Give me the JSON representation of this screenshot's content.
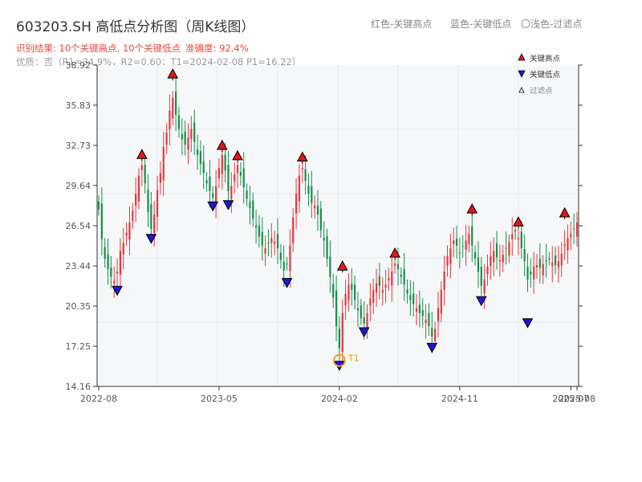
{
  "header": {
    "title": "603203.SH 高低点分析图（周K线图）",
    "legend_red": "红色-关键高点",
    "legend_blue": "蓝色-关键低点",
    "legend_light": "〇浅色-过滤点",
    "result_text": "识别结果: 10个关键高点, 10个关键低点",
    "accuracy_text": "准确度: 92.4%",
    "quality_text": "优质：否（R1=34.9%，R2=0.60；T1=2024-02-08 P1=16.22）"
  },
  "colors": {
    "up": "#e8373a",
    "down": "#16904a",
    "high_marker": "#e01919",
    "low_marker": "#1f17d6",
    "t1_marker": "#f59a23",
    "grid": "#e6e9ef",
    "plot_bg": "#f6f7f9"
  },
  "chart_data": {
    "type": "candlestick",
    "title": "603203.SH 高低点分析图（周K线图）",
    "ylim": [
      14.16,
      38.92
    ],
    "yticks": [
      "38.92",
      "35.83",
      "32.73",
      "29.64",
      "26.54",
      "23.44",
      "20.35",
      "17.25",
      "14.16"
    ],
    "xticks": [
      "2022-08",
      "2023-05",
      "2024-02",
      "2024-11",
      "2025-07",
      "2025-08"
    ],
    "xtick_weeks": [
      0,
      39,
      78,
      117,
      153,
      155
    ],
    "grid": true,
    "legend": {
      "placement": "top-right",
      "items": [
        {
          "label": "关键高点",
          "kind": "high"
        },
        {
          "label": "关键低点",
          "kind": "low"
        },
        {
          "label": "过滤点",
          "kind": "filtered"
        }
      ]
    },
    "key_highs": [
      {
        "week": 14,
        "price": 31.6
      },
      {
        "week": 24,
        "price": 37.8
      },
      {
        "week": 40,
        "price": 32.3
      },
      {
        "week": 45,
        "price": 31.5
      },
      {
        "week": 66,
        "price": 31.4
      },
      {
        "week": 79,
        "price": 23.0
      },
      {
        "week": 96,
        "price": 24.0
      },
      {
        "week": 121,
        "price": 27.4
      },
      {
        "week": 136,
        "price": 26.4
      },
      {
        "week": 151,
        "price": 27.1
      }
    ],
    "key_lows": [
      {
        "week": 6,
        "price": 22.0
      },
      {
        "week": 17,
        "price": 26.0
      },
      {
        "week": 37,
        "price": 28.5
      },
      {
        "week": 42,
        "price": 28.6
      },
      {
        "week": 61,
        "price": 22.6
      },
      {
        "week": 78,
        "price": 16.22
      },
      {
        "week": 86,
        "price": 18.8
      },
      {
        "week": 108,
        "price": 17.6
      },
      {
        "week": 124,
        "price": 21.2
      },
      {
        "week": 139,
        "price": 19.5
      }
    ],
    "annotation": {
      "label": "T1",
      "date": "2024-02-08",
      "week": 78,
      "price": 16.22
    },
    "series": [
      {
        "name": "weekly_close",
        "values": [
          27.8,
          25.5,
          24.0,
          23.2,
          22.6,
          22.3,
          23.0,
          24.6,
          25.2,
          26.0,
          26.8,
          27.7,
          29.0,
          30.4,
          31.2,
          29.8,
          27.6,
          26.3,
          27.4,
          29.3,
          30.6,
          32.6,
          33.7,
          35.4,
          36.4,
          35.1,
          34.0,
          33.2,
          32.8,
          33.3,
          34.0,
          33.0,
          32.0,
          31.3,
          30.6,
          29.8,
          29.2,
          28.7,
          29.6,
          31.0,
          32.0,
          30.8,
          29.2,
          29.6,
          30.5,
          31.2,
          30.4,
          29.5,
          28.6,
          27.9,
          27.1,
          26.4,
          25.7,
          25.0,
          24.8,
          25.2,
          25.6,
          25.3,
          24.8,
          23.9,
          23.1,
          23.6,
          25.0,
          27.2,
          29.0,
          30.4,
          31.0,
          30.0,
          29.0,
          28.3,
          28.1,
          27.4,
          26.2,
          25.4,
          24.0,
          22.6,
          21.0,
          18.8,
          17.1,
          19.8,
          21.3,
          22.0,
          21.6,
          20.8,
          20.0,
          19.4,
          19.0,
          19.8,
          20.9,
          21.6,
          22.1,
          21.9,
          21.6,
          22.0,
          22.5,
          23.0,
          23.6,
          23.2,
          22.6,
          22.0,
          21.3,
          20.8,
          20.5,
          20.2,
          19.8,
          19.6,
          19.3,
          18.8,
          18.0,
          18.6,
          20.2,
          21.6,
          23.0,
          24.2,
          24.8,
          25.4,
          25.0,
          24.4,
          24.9,
          25.4,
          25.9,
          25.0,
          24.0,
          23.0,
          21.9,
          22.4,
          23.4,
          24.2,
          24.6,
          24.1,
          23.9,
          24.3,
          24.8,
          25.3,
          25.9,
          26.1,
          25.6,
          24.8,
          23.8,
          22.4,
          22.8,
          23.4,
          23.5,
          23.3,
          23.6,
          23.8,
          24.0,
          23.7,
          23.5,
          23.8,
          24.4,
          25.1,
          25.6,
          25.9,
          26.3,
          26.8
        ]
      }
    ]
  }
}
